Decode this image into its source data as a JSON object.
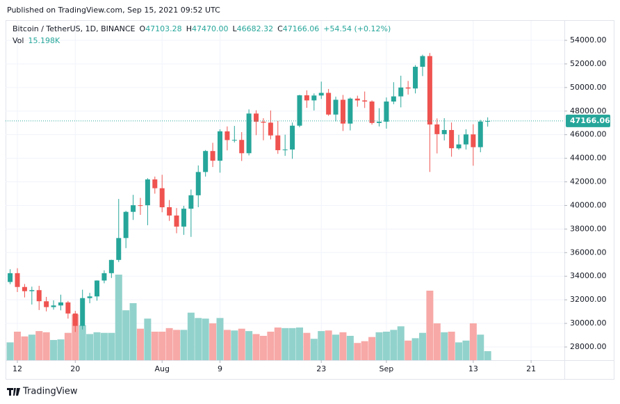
{
  "header": {
    "published": "Published on TradingView.com, Sep 15, 2021 09:52 UTC"
  },
  "chart_data": {
    "type": "candlestick",
    "symbol": "Bitcoin / TetherUS, 1D, BINANCE",
    "legend": [
      {
        "label": "O",
        "value": "47103.28"
      },
      {
        "label": "H",
        "value": "47470.00"
      },
      {
        "label": "L",
        "value": "46682.32"
      },
      {
        "label": "C",
        "value": "47166.06"
      }
    ],
    "change": "+54.54 (+0.12%)",
    "x": [
      "2021-07-11",
      "2021-07-12",
      "2021-07-13",
      "2021-07-14",
      "2021-07-15",
      "2021-07-16",
      "2021-07-17",
      "2021-07-18",
      "2021-07-19",
      "2021-07-20",
      "2021-07-21",
      "2021-07-22",
      "2021-07-23",
      "2021-07-24",
      "2021-07-25",
      "2021-07-26",
      "2021-07-27",
      "2021-07-28",
      "2021-07-29",
      "2021-07-30",
      "2021-07-31",
      "2021-08-01",
      "2021-08-02",
      "2021-08-03",
      "2021-08-04",
      "2021-08-05",
      "2021-08-06",
      "2021-08-07",
      "2021-08-08",
      "2021-08-09",
      "2021-08-10",
      "2021-08-11",
      "2021-08-12",
      "2021-08-13",
      "2021-08-14",
      "2021-08-15",
      "2021-08-16",
      "2021-08-17",
      "2021-08-18",
      "2021-08-19",
      "2021-08-20",
      "2021-08-21",
      "2021-08-22",
      "2021-08-23",
      "2021-08-24",
      "2021-08-25",
      "2021-08-26",
      "2021-08-27",
      "2021-08-28",
      "2021-08-29",
      "2021-08-30",
      "2021-08-31",
      "2021-09-01",
      "2021-09-02",
      "2021-09-03",
      "2021-09-04",
      "2021-09-05",
      "2021-09-06",
      "2021-09-07",
      "2021-09-08",
      "2021-09-09",
      "2021-09-10",
      "2021-09-11",
      "2021-09-12",
      "2021-09-13",
      "2021-09-14",
      "2021-09-15"
    ],
    "open": [
      33510,
      34259,
      33087,
      32730,
      32820,
      31874,
      31383,
      31520,
      31778,
      30839,
      29790,
      32144,
      32287,
      33634,
      34258,
      35381,
      37237,
      39457,
      40019,
      40016,
      42206,
      41461,
      39850,
      39146,
      38207,
      39723,
      40862,
      42836,
      44614,
      43792,
      46280,
      45543,
      45556,
      44429,
      47793,
      47097,
      47019,
      45937,
      44687,
      44741,
      46763,
      49339,
      48906,
      49321,
      49546,
      47706,
      48960,
      46942,
      49058,
      48903,
      48813,
      46994,
      47100,
      48810,
      49247,
      50000,
      49918,
      51757,
      52666,
      46868,
      46048,
      46395,
      44842,
      45174,
      46025,
      44941,
      47103.28
    ],
    "high": [
      34592,
      34678,
      33340,
      33114,
      33185,
      32249,
      31955,
      32435,
      31899,
      31063,
      32858,
      32591,
      33650,
      34500,
      35398,
      40550,
      39542,
      40900,
      40640,
      42316,
      42448,
      42599,
      40459,
      39780,
      39969,
      41350,
      43392,
      44700,
      45310,
      46454,
      46700,
      46743,
      46218,
      48144,
      48070,
      47400,
      48053,
      47160,
      46000,
      47033,
      49382,
      49757,
      49500,
      50500,
      49875,
      49229,
      49368,
      49150,
      49309,
      49658,
      48909,
      48246,
      49156,
      50450,
      51000,
      50558,
      51900,
      52780,
      52920,
      47381,
      47400,
      47033,
      45987,
      46460,
      46880,
      47250,
      47470
    ],
    "low": [
      33326,
      32658,
      32202,
      31600,
      31133,
      31020,
      31164,
      31108,
      30407,
      29278,
      29482,
      31708,
      31925,
      33401,
      33851,
      35205,
      36384,
      38772,
      39200,
      38323,
      41000,
      39422,
      38690,
      37642,
      37508,
      37332,
      39853,
      42446,
      43261,
      42779,
      44670,
      45341,
      43770,
      44241,
      45960,
      45525,
      45600,
      44376,
      44203,
      43955,
      46630,
      48274,
      48050,
      49028,
      47600,
      47126,
      46315,
      46363,
      48370,
      48264,
      46853,
      46700,
      46512,
      48584,
      48316,
      49400,
      49500,
      50969,
      42843,
      44412,
      45513,
      44132,
      44722,
      44742,
      43370,
      44512,
      46682.32
    ],
    "close": [
      34259,
      33087,
      32730,
      32820,
      31880,
      31383,
      31520,
      31778,
      30839,
      29790,
      32144,
      32287,
      33634,
      34258,
      35381,
      37237,
      39457,
      40019,
      40016,
      42206,
      41461,
      39845,
      39147,
      38207,
      39723,
      40862,
      42836,
      44614,
      43792,
      46285,
      45543,
      45556,
      44428,
      47793,
      47096,
      47019,
      45936,
      44686,
      44741,
      46763,
      49339,
      48905,
      49321,
      49546,
      47706,
      48960,
      46942,
      49058,
      48903,
      48812,
      46994,
      47100,
      48811,
      49246,
      49999,
      49915,
      51757,
      52664,
      46863,
      46048,
      46395,
      44851,
      45174,
      46025,
      44941,
      47111,
      47166.06
    ],
    "volume": {
      "name": "Vol",
      "legend_value": "15.198K",
      "values": [
        30,
        48,
        40,
        43,
        49,
        47,
        34,
        35,
        46,
        77,
        59,
        44,
        47,
        46,
        46,
        144,
        84,
        96,
        53,
        70,
        48,
        48,
        54,
        51,
        51,
        80,
        71,
        70,
        62,
        71,
        51,
        50,
        53,
        49,
        44,
        41,
        48,
        55,
        54,
        54,
        55,
        46,
        36,
        49,
        50,
        43,
        47,
        41,
        29,
        32,
        39,
        47,
        48,
        51,
        57,
        33,
        37,
        46,
        117,
        62,
        47,
        48,
        30,
        33,
        62,
        43,
        15.198
      ]
    },
    "vlim": [
      0,
      571
    ],
    "up_color": "#26a69a",
    "down_color": "#ef5350",
    "volume_up_color": "#92d2cc",
    "volume_down_color": "#f7a9a7",
    "ylim": [
      26880,
      55650
    ],
    "yticks": [
      {
        "value": 28000,
        "label": "28000.00"
      },
      {
        "value": 30000,
        "label": "30000.00"
      },
      {
        "value": 32000,
        "label": "32000.00"
      },
      {
        "value": 34000,
        "label": "34000.00"
      },
      {
        "value": 36000,
        "label": "36000.00"
      },
      {
        "value": 38000,
        "label": "38000.00"
      },
      {
        "value": 40000,
        "label": "40000.00"
      },
      {
        "value": 42000,
        "label": "42000.00"
      },
      {
        "value": 44000,
        "label": "44000.00"
      },
      {
        "value": 46000,
        "label": "46000.00"
      },
      {
        "value": 48000,
        "label": "48000.00"
      },
      {
        "value": 50000,
        "label": "50000.00"
      },
      {
        "value": 52000,
        "label": "52000.00"
      },
      {
        "value": 54000,
        "label": "54000.00"
      }
    ],
    "xticks": [
      {
        "value": "2021-07-12",
        "label": "12"
      },
      {
        "value": "2021-07-20",
        "label": "20"
      },
      {
        "value": "2021-08-01",
        "label": "Aug"
      },
      {
        "value": "2021-08-09",
        "label": "9"
      },
      {
        "value": "2021-08-23",
        "label": "23"
      },
      {
        "value": "2021-09-01",
        "label": "Sep"
      },
      {
        "value": "2021-09-13",
        "label": "13"
      },
      {
        "value": "2021-09-21",
        "label": "21"
      }
    ],
    "grid": true
  },
  "footer": {
    "brand": "TradingView"
  }
}
